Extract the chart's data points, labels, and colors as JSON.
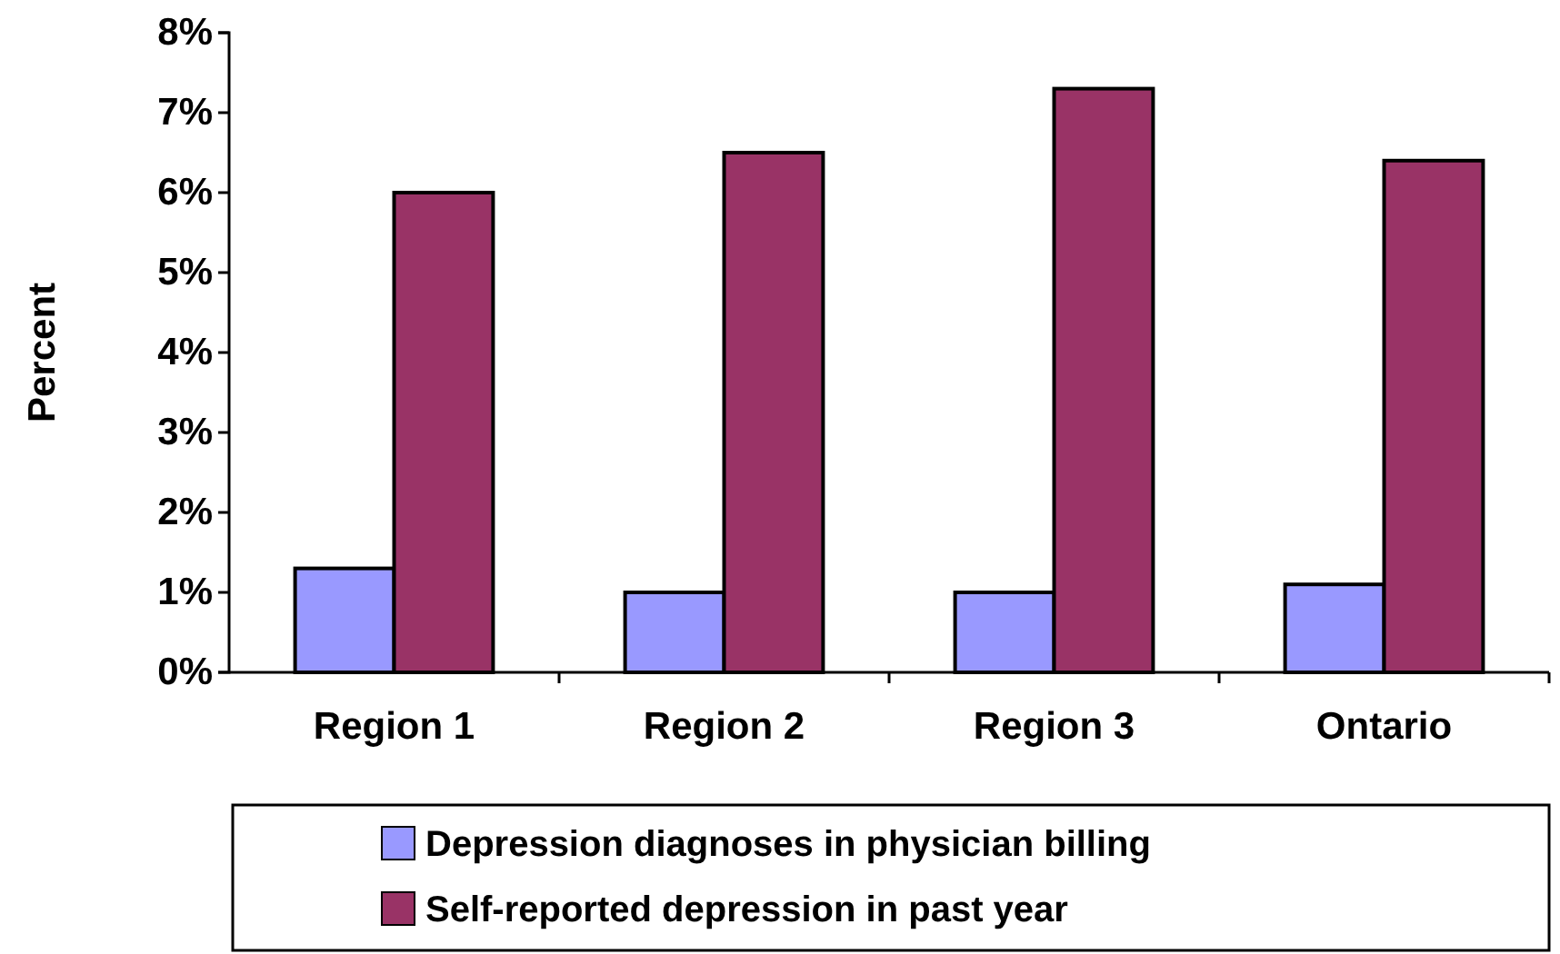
{
  "chart_data": {
    "type": "bar",
    "ylabel": "Percent",
    "categories": [
      "Region 1",
      "Region 2",
      "Region 3",
      "Ontario"
    ],
    "series": [
      {
        "name": "Depression diagnoses in physician billing",
        "color": "#9999ff",
        "values": [
          1.3,
          1.0,
          1.0,
          1.1
        ]
      },
      {
        "name": "Self-reported depression in past year",
        "color": "#993366",
        "values": [
          6.0,
          6.5,
          7.3,
          6.4
        ]
      }
    ],
    "ylim": [
      0,
      8
    ],
    "yticks": [
      {
        "value": 0,
        "label": "0%"
      },
      {
        "value": 1,
        "label": "1%"
      },
      {
        "value": 2,
        "label": "2%"
      },
      {
        "value": 3,
        "label": "3%"
      },
      {
        "value": 4,
        "label": "4%"
      },
      {
        "value": 5,
        "label": "5%"
      },
      {
        "value": 6,
        "label": "6%"
      },
      {
        "value": 7,
        "label": "7%"
      },
      {
        "value": 8,
        "label": "8%"
      }
    ],
    "legend": "bottom"
  }
}
